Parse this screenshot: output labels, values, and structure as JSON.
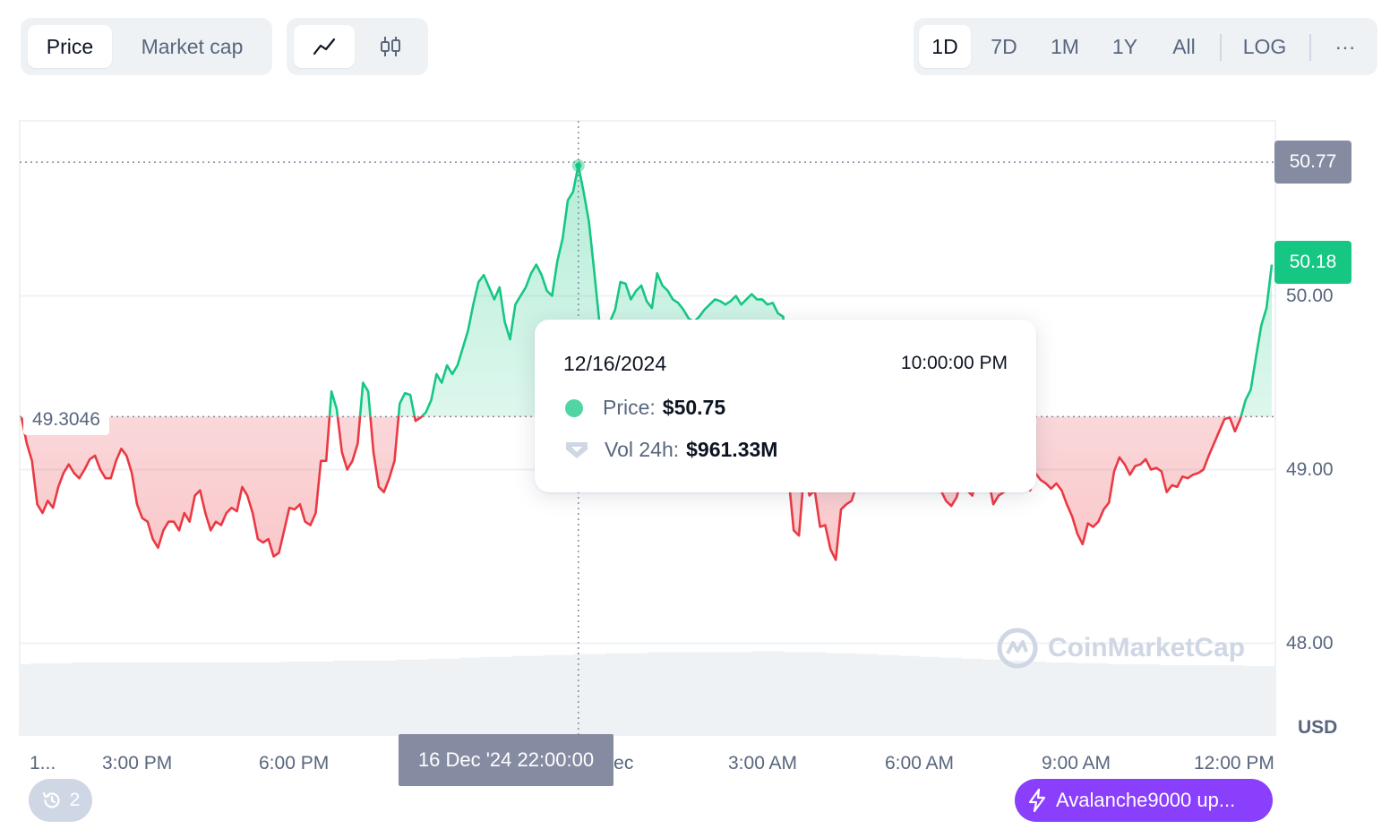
{
  "toolbar": {
    "metric_tabs": [
      {
        "label": "Price",
        "active": true
      },
      {
        "label": "Market cap",
        "active": false
      }
    ],
    "chart_style_icons": [
      "line-chart-icon",
      "candlestick-icon"
    ],
    "range_tabs": [
      {
        "label": "1D",
        "active": true
      },
      {
        "label": "7D",
        "active": false
      },
      {
        "label": "1M",
        "active": false
      },
      {
        "label": "1Y",
        "active": false
      },
      {
        "label": "All",
        "active": false
      }
    ],
    "log_label": "LOG",
    "more_label": "···"
  },
  "tooltip": {
    "date": "12/16/2024",
    "time": "10:00:00 PM",
    "price_label": "Price:",
    "price_value": "$50.75",
    "volume_label": "Vol 24h:",
    "volume_value": "$961.33M"
  },
  "price_tags": {
    "high": "50.77",
    "current": "50.18"
  },
  "reference_label": "49.3046",
  "hover_date": "16 Dec '24 22:00:00",
  "currency_label": "USD",
  "watermark_text": "CoinMarketCap",
  "history_chip": {
    "icon": "history-icon",
    "count": "2"
  },
  "news_chip": {
    "icon": "lightning-icon",
    "label": "Avalanche9000 up..."
  },
  "colors": {
    "up": "#16c784",
    "down": "#ea3943",
    "high_tag": "#858ca2",
    "accent": "#8a3ffc"
  },
  "chart_data": {
    "type": "line",
    "yticks": [
      "50.00",
      "49.00",
      "48.00"
    ],
    "xticks": [
      "1...",
      "3:00 PM",
      "6:00 PM",
      "Dec",
      "3:00 AM",
      "6:00 AM",
      "9:00 AM",
      "12:00 PM"
    ],
    "ylim": [
      47.5,
      51.05
    ],
    "reference_price": 49.3046,
    "series": [
      {
        "values": [
          49.3,
          49.15,
          49.05,
          48.8,
          48.75,
          48.82,
          48.78,
          48.9,
          48.98,
          49.03,
          48.98,
          48.95,
          49.0,
          49.06,
          49.08,
          49.0,
          48.95,
          48.95,
          49.05,
          49.12,
          49.08,
          48.98,
          48.8,
          48.72,
          48.7,
          48.6,
          48.55,
          48.65,
          48.7,
          48.7,
          48.65,
          48.75,
          48.7,
          48.85,
          48.88,
          48.75,
          48.65,
          48.7,
          48.68,
          48.75,
          48.78,
          48.76,
          48.9,
          48.85,
          48.75,
          48.6,
          48.58,
          48.6,
          48.5,
          48.52,
          48.65,
          48.78,
          48.77,
          48.8,
          48.7,
          48.68,
          48.75,
          49.05,
          49.05,
          49.45,
          49.35,
          49.1,
          49.0,
          49.05,
          49.15,
          49.5,
          49.45,
          49.1,
          48.9,
          48.87,
          48.95,
          49.05,
          49.38,
          49.44,
          49.43,
          49.28,
          49.3,
          49.33,
          49.4,
          49.55,
          49.5,
          49.6,
          49.55,
          49.6,
          49.7,
          49.8,
          49.95,
          50.08,
          50.12,
          50.05,
          49.98,
          50.05,
          49.85,
          49.75,
          49.95,
          50.0,
          50.05,
          50.13,
          50.18,
          50.12,
          50.03,
          50.0,
          50.2,
          50.33,
          50.55,
          50.6,
          50.75,
          50.6,
          50.43,
          50.15,
          49.85,
          49.8,
          49.85,
          49.92,
          50.08,
          50.07,
          49.98,
          50.03,
          50.06,
          49.97,
          49.93,
          50.13,
          50.06,
          50.03,
          49.98,
          49.96,
          49.92,
          49.87,
          49.85,
          49.88,
          49.92,
          49.95,
          49.98,
          49.97,
          49.95,
          49.97,
          50.0,
          49.95,
          49.98,
          50.01,
          49.98,
          49.98,
          49.95,
          49.96,
          49.9,
          49.88,
          48.96,
          48.65,
          48.62,
          49.0,
          48.85,
          48.88,
          48.67,
          48.68,
          48.54,
          48.48,
          48.77,
          48.8,
          48.82,
          48.91,
          48.92,
          49.05,
          49.05,
          49.06,
          49.08,
          49.0,
          49.04,
          49.0,
          48.95,
          48.98,
          48.93,
          48.97,
          48.91,
          48.95,
          48.95,
          48.88,
          48.82,
          48.79,
          48.84,
          48.95,
          48.88,
          48.85,
          48.98,
          48.89,
          48.95,
          48.8,
          48.85,
          48.87,
          48.92,
          49.0,
          48.95,
          48.9,
          48.88,
          48.98,
          48.94,
          48.92,
          48.89,
          48.92,
          48.88,
          48.8,
          48.73,
          48.63,
          48.57,
          48.69,
          48.67,
          48.7,
          48.77,
          48.81,
          48.99,
          49.07,
          49.03,
          48.97,
          49.02,
          49.03,
          49.06,
          49.0,
          49.01,
          48.99,
          48.87,
          48.91,
          48.9,
          48.96,
          48.95,
          48.97,
          48.98,
          49.0,
          49.08,
          49.15,
          49.22,
          49.29,
          49.3,
          49.22,
          49.29,
          49.4,
          49.46,
          49.65,
          49.83,
          49.93,
          50.18
        ]
      }
    ],
    "volume_fraction": [
      0.76,
      0.77,
      0.77,
      0.77,
      0.77,
      0.78,
      0.78,
      0.78,
      0.78,
      0.78,
      0.78,
      0.78,
      0.78,
      0.78,
      0.78,
      0.78,
      0.78,
      0.78,
      0.78,
      0.78,
      0.78,
      0.78,
      0.78,
      0.78,
      0.78,
      0.79,
      0.79,
      0.79,
      0.79,
      0.79,
      0.8,
      0.8,
      0.8,
      0.8,
      0.8,
      0.8,
      0.81,
      0.81,
      0.81,
      0.82,
      0.82,
      0.82,
      0.83,
      0.83,
      0.84,
      0.84,
      0.84,
      0.85,
      0.85,
      0.85,
      0.86,
      0.86,
      0.86,
      0.87,
      0.87,
      0.87,
      0.88,
      0.88,
      0.88,
      0.88,
      0.89,
      0.89,
      0.89,
      0.89,
      0.89,
      0.89,
      0.89,
      0.89,
      0.89,
      0.89,
      0.9,
      0.9,
      0.9,
      0.89,
      0.89,
      0.89,
      0.89,
      0.88,
      0.88,
      0.88,
      0.87,
      0.87,
      0.86,
      0.86,
      0.85,
      0.85,
      0.84,
      0.84,
      0.83,
      0.83,
      0.82,
      0.82,
      0.81,
      0.81,
      0.8,
      0.8,
      0.79,
      0.79,
      0.78,
      0.78,
      0.78,
      0.77,
      0.77,
      0.77,
      0.76,
      0.76,
      0.76,
      0.76,
      0.76,
      0.75,
      0.75,
      0.75,
      0.75,
      0.75,
      0.75,
      0.75,
      0.75,
      0.74,
      0.74,
      0.74
    ]
  }
}
